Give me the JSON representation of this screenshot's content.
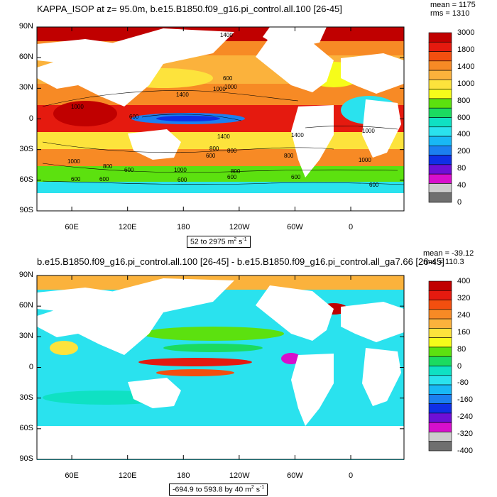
{
  "chart_data": [
    {
      "type": "heatmap",
      "title": "KAPPA_ISOP at z=  95.0m, b.e15.B1850.f09_g16.pi_control.all.100 [26-45]",
      "stats": {
        "mean": "mean = 1175",
        "rms": "rms = 1310"
      },
      "range_text": "52 to 2975",
      "units": "m",
      "units_exp": "2",
      "units_tail": "s",
      "units_tail_exp": "-1",
      "xticks": [
        "60E",
        "120E",
        "180",
        "120W",
        "60W",
        "0"
      ],
      "yticks": [
        "90N",
        "60N",
        "30N",
        "0",
        "30S",
        "60S",
        "90S"
      ],
      "colorbar_labels": [
        "3000",
        "1800",
        "1400",
        "1000",
        "800",
        "600",
        "400",
        "200",
        "80",
        "40",
        "0"
      ],
      "colorbar_colors": [
        "#c00000",
        "#e51a0f",
        "#f34f0f",
        "#f78a25",
        "#fbb23c",
        "#fde33c",
        "#f6fc1a",
        "#5ce10f",
        "#1bdb60",
        "#0fe1c3",
        "#2ae2ee",
        "#18b8f5",
        "#1b7ff0",
        "#0f2fe6",
        "#6e0fd6",
        "#d70fcc",
        "#cccccc",
        "#6f6f6f"
      ],
      "contour_labels": [
        "1400",
        "1000",
        "600",
        "1000",
        "1400",
        "600",
        "1000",
        "1000",
        "1400",
        "600",
        "600",
        "1400",
        "1000",
        "800",
        "1000",
        "600",
        "800",
        "1000",
        "600",
        "800",
        "600",
        "800",
        "600",
        "600",
        "600",
        "800"
      ]
    },
    {
      "type": "heatmap",
      "title": "b.e15.B1850.f09_g16.pi_control.all.100 [26-45] - b.e15.B1850.f09_g16.pi_control.all_ga7.66 [26-45]",
      "stats": {
        "mean": "mean = -39.12",
        "rms": "rms = 110.3"
      },
      "range_text": "-694.9 to 593.8 by 40",
      "units": "m",
      "units_exp": "2",
      "units_tail": "s",
      "units_tail_exp": "-1",
      "xticks": [
        "60E",
        "120E",
        "180",
        "120W",
        "60W",
        "0"
      ],
      "yticks": [
        "90N",
        "60N",
        "30N",
        "0",
        "30S",
        "60S",
        "90S"
      ],
      "colorbar_labels": [
        "400",
        "320",
        "240",
        "160",
        "80",
        "0",
        "-80",
        "-160",
        "-240",
        "-320",
        "-400"
      ],
      "colorbar_colors": [
        "#c00000",
        "#e51a0f",
        "#f34f0f",
        "#f78a25",
        "#fbb23c",
        "#fde33c",
        "#f6fc1a",
        "#5ce10f",
        "#1bdb60",
        "#0fe1c3",
        "#2ae2ee",
        "#18b8f5",
        "#1b7ff0",
        "#0f2fe6",
        "#6e0fd6",
        "#d70fcc",
        "#cccccc",
        "#6f6f6f"
      ]
    }
  ]
}
